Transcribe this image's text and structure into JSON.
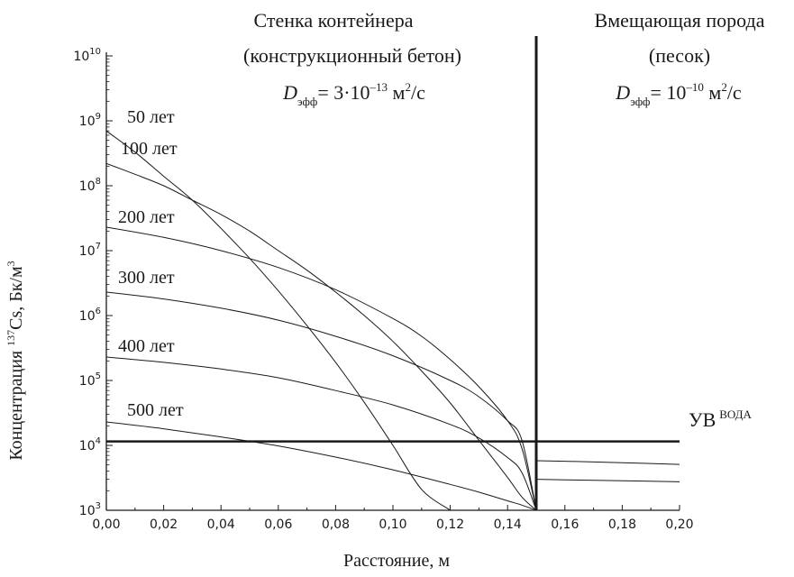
{
  "chart_data": {
    "type": "line",
    "xlabel": "Расстояние, м",
    "ylabel": "Концентрация",
    "ylabel_isotope": "137",
    "ylabel_rest": "Cs, Бк/м",
    "ylabel_unit_sup": "3",
    "xlim": [
      0,
      0.2
    ],
    "ylim": [
      1000,
      10000000000
    ],
    "yscale": "log",
    "xticks": [
      "0,00",
      "0,02",
      "0,04",
      "0,06",
      "0,08",
      "0,10",
      "0,12",
      "0,14",
      "0,16",
      "0,18",
      "0,20"
    ],
    "yticks": [
      {
        "base": "10",
        "exp": "3"
      },
      {
        "base": "10",
        "exp": "4"
      },
      {
        "base": "10",
        "exp": "5"
      },
      {
        "base": "10",
        "exp": "6"
      },
      {
        "base": "10",
        "exp": "7"
      },
      {
        "base": "10",
        "exp": "8"
      },
      {
        "base": "10",
        "exp": "9"
      },
      {
        "base": "10",
        "exp": "10"
      }
    ],
    "regions": {
      "left": {
        "line1": "Стенка контейнера",
        "line2": "(конструкционный бетон)",
        "d_symbol": "D",
        "d_sub": "эфф",
        "d_value": "= 3·10",
        "d_exp": "–13",
        "d_unit": " м",
        "d_unit_sup": "2",
        "d_unit_end": "/с"
      },
      "right": {
        "line1": "Вмещающая порода",
        "line2": "(песок)",
        "d_symbol": "D",
        "d_sub": "эфф",
        "d_value": "= 10",
        "d_exp": "–10",
        "d_unit": " м",
        "d_unit_sup": "2",
        "d_unit_end": "/с"
      }
    },
    "boundary_x": 0.15,
    "threshold": {
      "y": 11500,
      "label": "УВ",
      "label_sup": "ВОДА"
    },
    "series": [
      {
        "name": "50 лет",
        "x": [
          0,
          0.01,
          0.02,
          0.03,
          0.04,
          0.05,
          0.06,
          0.07,
          0.08,
          0.09,
          0.1,
          0.11,
          0.12
        ],
        "y": [
          700000000,
          330000000,
          140000000,
          60000000,
          22000000,
          7600000,
          2400000,
          700000,
          190000,
          46000,
          10000,
          2100,
          1000
        ]
      },
      {
        "name": "100 лет",
        "x": [
          0,
          0.01,
          0.02,
          0.03,
          0.04,
          0.05,
          0.06,
          0.07,
          0.08,
          0.09,
          0.1,
          0.11,
          0.12,
          0.13,
          0.14,
          0.145,
          0.15
        ],
        "y": [
          220000000,
          150000000,
          100000000,
          60000000,
          36000000,
          20000000,
          10000000,
          5000000,
          2300000,
          1000000,
          400000,
          140000,
          45000,
          12000,
          3200,
          1600,
          1000
        ]
      },
      {
        "name": "200 лет",
        "x": [
          0,
          0.02,
          0.04,
          0.06,
          0.08,
          0.1,
          0.11,
          0.12,
          0.13,
          0.14,
          0.145,
          0.15
        ],
        "y": [
          23000000,
          16000000,
          10000000,
          5500000,
          2500000,
          900000,
          480000,
          210000,
          80000,
          24000,
          9000,
          1000
        ]
      },
      {
        "name": "300 лет",
        "x": [
          0,
          0.02,
          0.04,
          0.06,
          0.08,
          0.1,
          0.12,
          0.13,
          0.14,
          0.145,
          0.15
        ],
        "y": [
          2300000,
          1800000,
          1300000,
          850000,
          480000,
          240000,
          100000,
          56000,
          24000,
          12000,
          1000
        ]
      },
      {
        "name": "400 лет",
        "x": [
          0,
          0.02,
          0.04,
          0.06,
          0.08,
          0.1,
          0.12,
          0.13,
          0.14,
          0.145,
          0.15
        ],
        "y": [
          230000,
          190000,
          150000,
          110000,
          70000,
          42000,
          21000,
          13000,
          6500,
          3800,
          1000
        ]
      },
      {
        "name": "500 лет",
        "x": [
          0,
          0.02,
          0.04,
          0.06,
          0.08,
          0.1,
          0.12,
          0.13,
          0.14,
          0.145,
          0.15
        ],
        "y": [
          23000,
          18000,
          13500,
          9800,
          6600,
          4200,
          2500,
          1900,
          1400,
          1200,
          1000
        ]
      }
    ],
    "right_series": [
      {
        "x": [
          0.15,
          0.16,
          0.18,
          0.2
        ],
        "y": [
          5800,
          5700,
          5400,
          5100
        ]
      },
      {
        "x": [
          0.15,
          0.16,
          0.18,
          0.2
        ],
        "y": [
          3000,
          2950,
          2850,
          2750
        ]
      }
    ]
  }
}
